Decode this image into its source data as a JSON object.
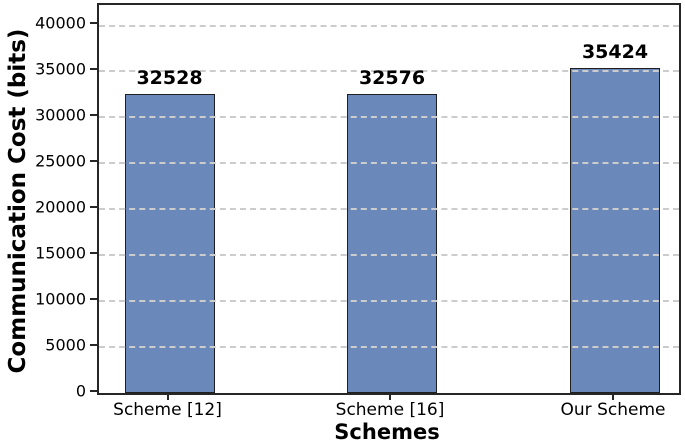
{
  "chart_data": {
    "type": "bar",
    "title": "",
    "xlabel": "Schemes",
    "ylabel": "Communication Cost (bits)",
    "categories": [
      "Scheme [12]",
      "Scheme [16]",
      "Our Scheme"
    ],
    "values": [
      32528,
      32576,
      35424
    ],
    "bar_labels": [
      "32528",
      "32576",
      "35424"
    ],
    "yticks": [
      0,
      5000,
      10000,
      15000,
      20000,
      25000,
      30000,
      35000,
      40000
    ],
    "ytick_labels": [
      "0",
      "5000",
      "10000",
      "15000",
      "20000",
      "25000",
      "30000",
      "35000",
      "40000"
    ],
    "ylim": [
      0,
      42230
    ],
    "grid": "horizontal-dashed",
    "legend": "none",
    "colors": {
      "bar_fill": "#6a89ba",
      "bar_edge": "#1f1f1f",
      "grid_line": "#cccccc",
      "spine": "#262626",
      "text": "#000000"
    }
  }
}
